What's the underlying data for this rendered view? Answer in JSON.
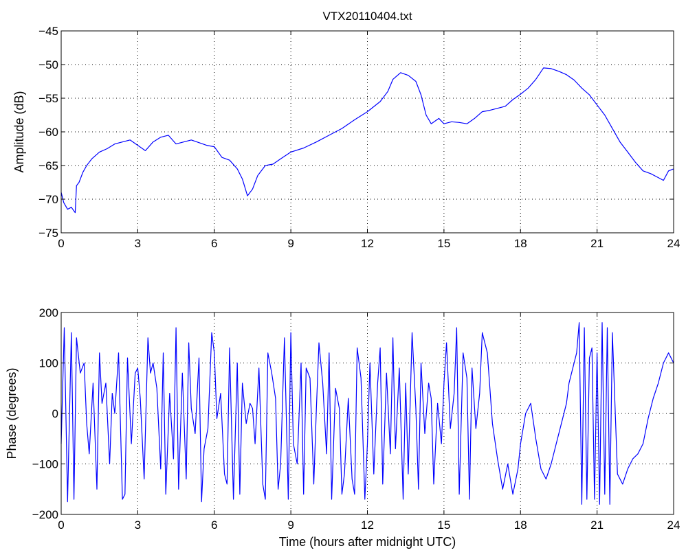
{
  "chart_data": [
    {
      "type": "line",
      "title": "VTX20110404.txt",
      "xlabel": "",
      "ylabel": "Amplitude (dB)",
      "xlim": [
        0,
        24
      ],
      "ylim": [
        -75,
        -45
      ],
      "xticks": [
        0,
        3,
        6,
        9,
        12,
        15,
        18,
        21,
        24
      ],
      "yticks": [
        -75,
        -70,
        -65,
        -60,
        -55,
        -50,
        -45
      ],
      "xtick_labels": [
        "0",
        "3",
        "6",
        "9",
        "12",
        "15",
        "18",
        "21",
        "24"
      ],
      "ytick_labels": [
        "−75",
        "−70",
        "−65",
        "−60",
        "−55",
        "−50",
        "−45"
      ],
      "grid": true,
      "color": "#0000ff",
      "series": [
        {
          "x": [
            0,
            0.1,
            0.25,
            0.4,
            0.55,
            0.6,
            0.7,
            0.85,
            1.0,
            1.2,
            1.5,
            1.8,
            2.1,
            2.4,
            2.7,
            3.0,
            3.3,
            3.6,
            3.9,
            4.2,
            4.5,
            4.8,
            5.1,
            5.4,
            5.7,
            6.0,
            6.3,
            6.6,
            6.9,
            7.1,
            7.3,
            7.5,
            7.7,
            8.0,
            8.3,
            8.6,
            9.0,
            9.5,
            10.0,
            10.5,
            11.0,
            11.5,
            12.0,
            12.5,
            12.8,
            13.0,
            13.3,
            13.6,
            13.9,
            14.1,
            14.3,
            14.5,
            14.8,
            15.0,
            15.3,
            15.6,
            15.9,
            16.2,
            16.5,
            16.8,
            17.1,
            17.4,
            17.7,
            18.0,
            18.3,
            18.6,
            18.9,
            19.2,
            19.5,
            19.8,
            20.1,
            20.4,
            20.7,
            21.0,
            21.3,
            21.6,
            21.9,
            22.2,
            22.5,
            22.8,
            23.1,
            23.4,
            23.6,
            23.8,
            24.0
          ],
          "y": [
            -69,
            -70.5,
            -71.5,
            -71.2,
            -72,
            -68,
            -67.5,
            -66,
            -65,
            -64,
            -63,
            -62.5,
            -61.8,
            -61.5,
            -61.2,
            -62,
            -62.8,
            -61.5,
            -60.8,
            -60.5,
            -61.8,
            -61.5,
            -61.2,
            -61.6,
            -62,
            -62.2,
            -63.8,
            -64.2,
            -65.5,
            -67,
            -69.5,
            -68.5,
            -66.5,
            -65,
            -64.8,
            -64,
            -63,
            -62.4,
            -61.5,
            -60.5,
            -59.5,
            -58.2,
            -57,
            -55.5,
            -54,
            -52.2,
            -51.2,
            -51.6,
            -52.5,
            -54.5,
            -57.5,
            -58.8,
            -58,
            -58.8,
            -58.5,
            -58.6,
            -58.8,
            -58,
            -57,
            -56.8,
            -56.5,
            -56.2,
            -55.2,
            -54.4,
            -53.5,
            -52.2,
            -50.5,
            -50.6,
            -51,
            -51.5,
            -52.3,
            -53.5,
            -54.5,
            -56,
            -57.5,
            -59.5,
            -61.5,
            -63,
            -64.5,
            -65.8,
            -66.2,
            -66.8,
            -67.2,
            -65.8,
            -65.5
          ]
        }
      ]
    },
    {
      "type": "line",
      "title": "",
      "xlabel": "Time (hours after midnight UTC)",
      "ylabel": "Phase (degrees)",
      "xlim": [
        0,
        24
      ],
      "ylim": [
        -200,
        200
      ],
      "xticks": [
        0,
        3,
        6,
        9,
        12,
        15,
        18,
        21,
        24
      ],
      "yticks": [
        -200,
        -100,
        0,
        100,
        200
      ],
      "xtick_labels": [
        "0",
        "3",
        "6",
        "9",
        "12",
        "15",
        "18",
        "21",
        "24"
      ],
      "ytick_labels": [
        "−200",
        "−100",
        "0",
        "100",
        "200"
      ],
      "grid": true,
      "color": "#0000ff",
      "series": [
        {
          "x": [
            0.0,
            0.12,
            0.25,
            0.4,
            0.5,
            0.6,
            0.75,
            0.9,
            1.0,
            1.1,
            1.25,
            1.4,
            1.5,
            1.6,
            1.75,
            1.9,
            2.0,
            2.1,
            2.25,
            2.4,
            2.5,
            2.6,
            2.75,
            2.9,
            3.0,
            3.1,
            3.25,
            3.4,
            3.5,
            3.6,
            3.75,
            3.9,
            4.0,
            4.1,
            4.25,
            4.4,
            4.5,
            4.6,
            4.75,
            4.9,
            5.0,
            5.1,
            5.25,
            5.4,
            5.5,
            5.6,
            5.75,
            5.9,
            6.0,
            6.1,
            6.25,
            6.4,
            6.5,
            6.6,
            6.75,
            6.9,
            7.0,
            7.1,
            7.25,
            7.4,
            7.5,
            7.6,
            7.75,
            7.9,
            8.0,
            8.1,
            8.25,
            8.4,
            8.5,
            8.6,
            8.75,
            8.9,
            9.0,
            9.1,
            9.25,
            9.4,
            9.5,
            9.6,
            9.75,
            9.9,
            10.0,
            10.1,
            10.25,
            10.4,
            10.5,
            10.6,
            10.75,
            10.9,
            11.0,
            11.1,
            11.25,
            11.4,
            11.5,
            11.6,
            11.75,
            11.9,
            12.0,
            12.1,
            12.25,
            12.4,
            12.5,
            12.6,
            12.75,
            12.9,
            13.0,
            13.1,
            13.25,
            13.4,
            13.5,
            13.6,
            13.75,
            13.9,
            14.0,
            14.1,
            14.25,
            14.4,
            14.5,
            14.6,
            14.75,
            14.9,
            15.0,
            15.1,
            15.25,
            15.4,
            15.5,
            15.6,
            15.75,
            15.9,
            16.0,
            16.1,
            16.25,
            16.4,
            16.5,
            16.7,
            16.9,
            17.1,
            17.3,
            17.5,
            17.7,
            17.9,
            18.0,
            18.2,
            18.4,
            18.6,
            18.8,
            19.0,
            19.2,
            19.4,
            19.6,
            19.8,
            19.9,
            20.0,
            20.1,
            20.2,
            20.3,
            20.4,
            20.5,
            20.6,
            20.7,
            20.8,
            20.9,
            21.0,
            21.1,
            21.2,
            21.3,
            21.4,
            21.5,
            21.6,
            21.8,
            22.0,
            22.2,
            22.4,
            22.6,
            22.8,
            23.0,
            23.2,
            23.4,
            23.6,
            23.8,
            24.0
          ],
          "y": [
            -60,
            170,
            -175,
            160,
            -170,
            150,
            80,
            100,
            -20,
            -80,
            60,
            -150,
            120,
            20,
            60,
            -100,
            40,
            0,
            120,
            -170,
            -160,
            110,
            -60,
            80,
            90,
            30,
            -130,
            150,
            80,
            100,
            50,
            -110,
            120,
            -160,
            40,
            -90,
            170,
            -150,
            80,
            -130,
            140,
            10,
            -40,
            110,
            -175,
            -70,
            -30,
            160,
            120,
            -10,
            40,
            -120,
            -140,
            130,
            -170,
            100,
            -160,
            60,
            -20,
            20,
            10,
            -60,
            90,
            -140,
            -170,
            120,
            80,
            30,
            -150,
            -100,
            150,
            -170,
            160,
            -60,
            -100,
            100,
            -160,
            90,
            70,
            -140,
            10,
            140,
            60,
            -80,
            120,
            -170,
            50,
            10,
            -160,
            -120,
            30,
            -130,
            -160,
            130,
            70,
            -170,
            -60,
            100,
            -120,
            60,
            130,
            -140,
            80,
            -80,
            150,
            -70,
            90,
            -170,
            60,
            -120,
            160,
            10,
            -150,
            100,
            -40,
            60,
            30,
            -140,
            20,
            -60,
            60,
            140,
            -30,
            40,
            170,
            -160,
            120,
            70,
            -170,
            90,
            -30,
            40,
            160,
            120,
            -20,
            -90,
            -150,
            -100,
            -160,
            -110,
            -60,
            0,
            20,
            -50,
            -110,
            -130,
            -100,
            -60,
            -20,
            20,
            60,
            80,
            100,
            120,
            180,
            -180,
            170,
            -170,
            110,
            130,
            -170,
            120,
            -180,
            180,
            -160,
            170,
            -180,
            160,
            -120,
            -140,
            -110,
            -90,
            -80,
            -60,
            -10,
            30,
            60,
            100,
            120,
            100
          ]
        }
      ]
    }
  ]
}
